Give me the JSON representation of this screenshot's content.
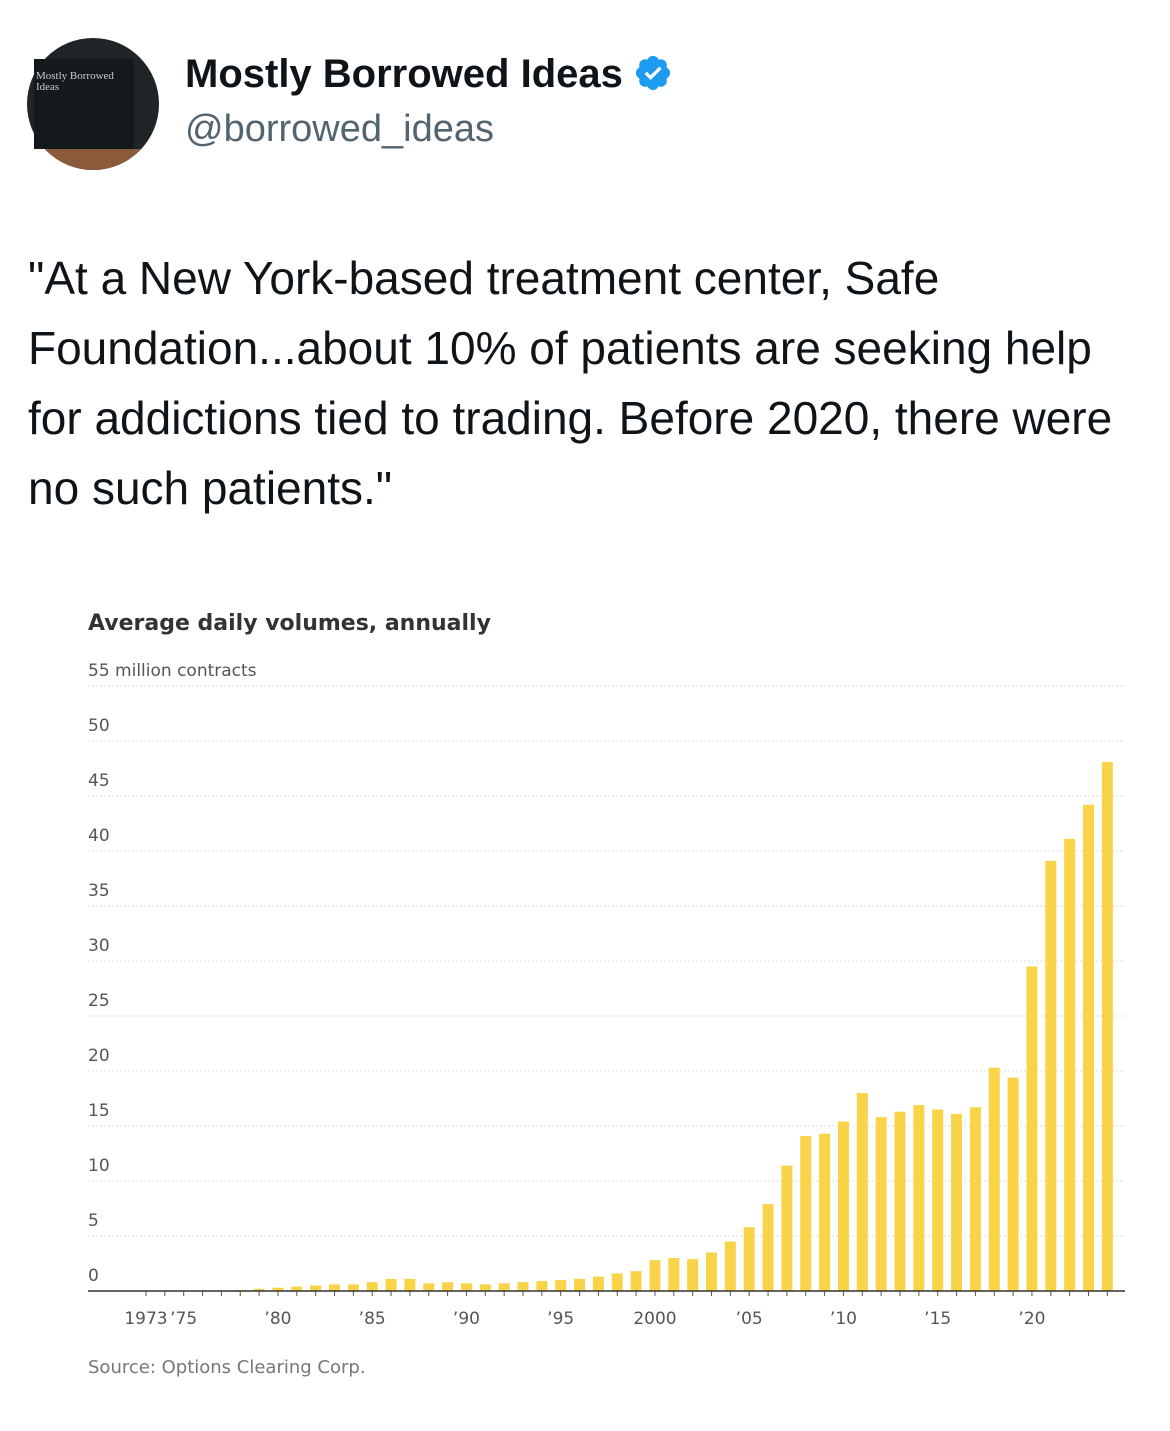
{
  "tweet": {
    "avatar_text": "Mostly Borrowed Ideas",
    "name": "Mostly Borrowed Ideas",
    "handle": "@borrowed_ideas",
    "text": "\"At a New York-based treatment center, Safe Foundation...about 10% of patients are seeking help for addictions tied to trading. Before 2020, there were no such patients.\""
  },
  "chart_data": {
    "type": "bar",
    "title": "Average daily volumes, annually",
    "source": "Source: Options Clearing Corp.",
    "color": "#f9d448",
    "categories": [
      "1973",
      null,
      "’75",
      null,
      null,
      null,
      null,
      "’80",
      null,
      null,
      null,
      null,
      "’85",
      null,
      null,
      null,
      null,
      "’90",
      null,
      null,
      null,
      null,
      "’95",
      null,
      null,
      null,
      null,
      "2000",
      null,
      null,
      null,
      null,
      "’05",
      null,
      null,
      null,
      null,
      "’10",
      null,
      null,
      null,
      null,
      "’15",
      null,
      null,
      null,
      null,
      "’20",
      null,
      null,
      null,
      null
    ],
    "values": [
      0,
      0.01,
      0.02,
      0.03,
      0.05,
      0.1,
      0.2,
      0.3,
      0.4,
      0.5,
      0.6,
      0.6,
      0.8,
      1.1,
      1.1,
      0.7,
      0.8,
      0.7,
      0.6,
      0.7,
      0.8,
      0.9,
      1.0,
      1.1,
      1.3,
      1.6,
      1.8,
      2.8,
      3.0,
      2.9,
      3.5,
      4.5,
      5.8,
      7.9,
      11.4,
      14.1,
      14.3,
      15.4,
      18.0,
      15.8,
      16.3,
      16.9,
      16.5,
      16.1,
      16.7,
      20.3,
      19.4,
      29.5,
      39.1,
      41.1,
      44.2,
      48.1
    ],
    "ylim": [
      0,
      55
    ],
    "yticks": [
      0,
      5,
      10,
      15,
      20,
      25,
      30,
      35,
      40,
      45,
      50,
      {
        "value": 55,
        "label": "55 million contracts"
      }
    ],
    "grid": true
  }
}
